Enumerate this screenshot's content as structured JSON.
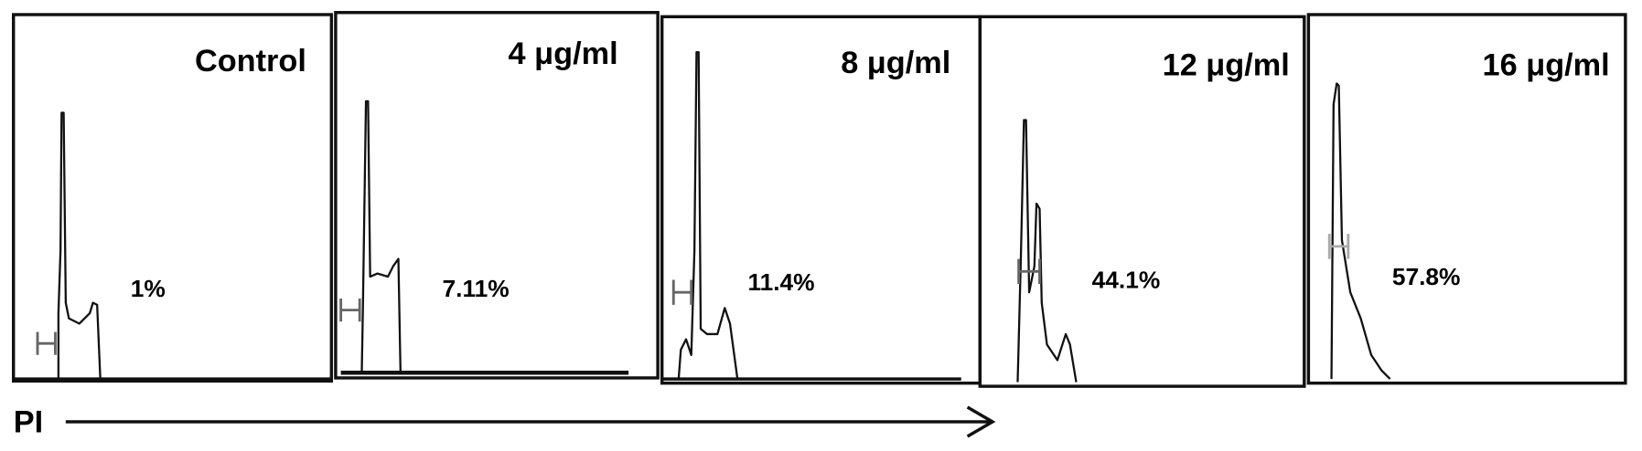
{
  "panels": [
    {
      "title": "Control",
      "percentage": "1%"
    },
    {
      "title": "4 μg/ml",
      "percentage": "7.11%"
    },
    {
      "title": "8 μg/ml",
      "percentage": "11.4%"
    },
    {
      "title": "12 μg/ml",
      "percentage": "44.1%"
    },
    {
      "title": "16 μg/ml",
      "percentage": "57.8%"
    }
  ],
  "axis_label": "PI"
}
